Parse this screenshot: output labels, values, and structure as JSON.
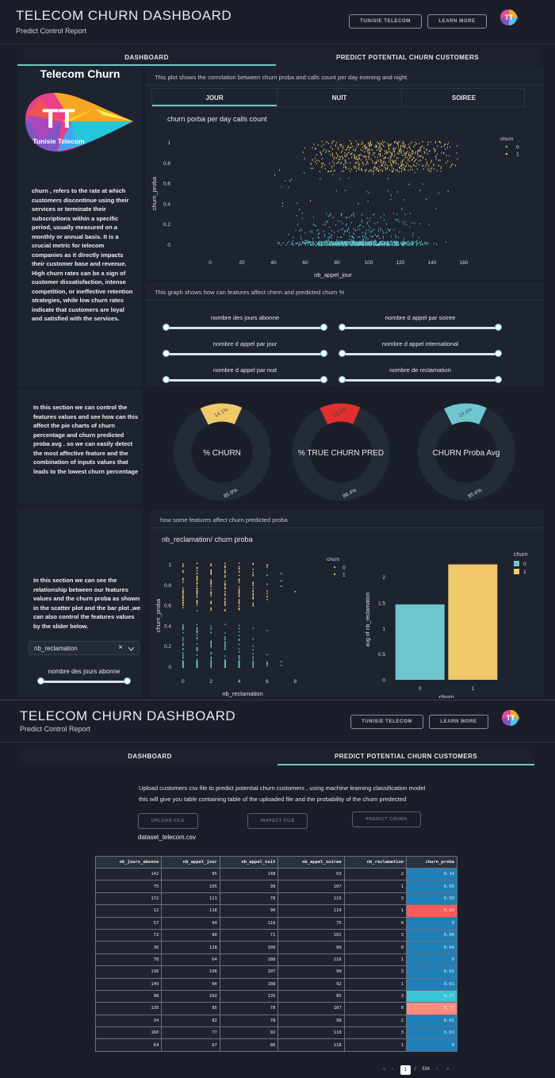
{
  "header": {
    "title": "TELECOM CHURN DASHBOARD",
    "subtitle": "Predict Control Report",
    "btn_tunisie": "TUNISIE TELECOM",
    "btn_learn": "LEARN MORE"
  },
  "tabs": {
    "dashboard": "DASHBOARD",
    "predict": "PREDICT POTENTIAL CHURN CUSTOMERS"
  },
  "sidebar": {
    "brand_title": "Telecom Churn",
    "logo_text": "Tunisie Telecom",
    "logo_letters": "TT",
    "intro": "churn , refers to the rate at which customers discontinue using their services or terminate their subscriptions within a specific period, usually measured on a monthly or annual basis. It is a crucial metric for telecom companies as it directly impacts their customer base and revenue. High churn rates can be a sign of customer dissatisfaction, intense competition, or ineffective retention strategies, while low churn rates indicate that customers are loyal and satisfied with the services.",
    "section2": "In this section we can control the features values and see how can this affect the pie charts of churn percentage and churn predicted proba avg . so we can easily detect the most affective feature and the combination of inputs values that leads to the lowest churn percentage",
    "section3": "In this section we can see the relationship between our features values and the churn proba as shown in the scatter plot and the bar plot ,we can also control the features values by the slider below.",
    "dropdown_value": "nb_reclamation",
    "dropdown_clear": "×",
    "slider_label": "nombre des jours abonne"
  },
  "scatter_panel": {
    "description": "This plot shows the corrolation between churn proba and calls count per day evening and night",
    "subtabs": [
      "JOUR",
      "NUIT",
      "SOIREE"
    ]
  },
  "features_panel": {
    "description": "This graph shows how can features affect chern and predicted churn %",
    "sliders": [
      "nombre des jours abonne",
      "nombre d appel par soiree",
      "nombre d appel par jour",
      "nombre d appel international",
      "nombre d appel par nuit",
      "nombre de reclamation"
    ]
  },
  "donuts": [
    {
      "label": "% CHURN",
      "value": 14.1,
      "rest": 85.9,
      "value_text": "14.1%",
      "rest_text": "85.9%",
      "color": "#f2c96a"
    },
    {
      "label": "% TRUE CHURN PRED",
      "value": 13.6,
      "rest": 86.4,
      "value_text": "13.6%",
      "rest_text": "86.4%",
      "color": "#e0302e"
    },
    {
      "label": "CHURN Proba Avg",
      "value": 14.4,
      "rest": 85.6,
      "value_text": "14.4%",
      "rest_text": "85.6%",
      "color": "#6fc6d0"
    }
  ],
  "bottom_panel": {
    "description": "how some features affect churn predicted proba"
  },
  "predict_page": {
    "desc_line1": "Upload customers csv file to predict potential churn customers , using machine learning classification model",
    "desc_line2": "this will give you table containing table of the uploaded file and the probability of the churn predected",
    "btn_upload": "UPLOAD FILE",
    "btn_inspect": "INSPECT FILE",
    "btn_predict": "PREDICT CHURN",
    "filename": "dataset_telecom.csv",
    "columns": [
      "nb_jours_abonne",
      "nb_appel_jour",
      "nb_appel_nuit",
      "nb_appel_soiree",
      "nb_reclamation",
      "churn_proba"
    ],
    "rows": [
      [
        "142",
        "95",
        "148",
        "63",
        "2",
        "0.14"
      ],
      [
        "75",
        "105",
        "98",
        "107",
        "1",
        "0.05"
      ],
      [
        "172",
        "121",
        "78",
        "115",
        "3",
        "0.03"
      ],
      [
        "12",
        "118",
        "90",
        "119",
        "1",
        "0.93"
      ],
      [
        "57",
        "94",
        "116",
        "75",
        "0",
        "0"
      ],
      [
        "72",
        "80",
        "71",
        "102",
        "3",
        "0.06"
      ],
      [
        "36",
        "128",
        "109",
        "80",
        "0",
        "0.04"
      ],
      [
        "78",
        "64",
        "108",
        "116",
        "1",
        "0"
      ],
      [
        "136",
        "106",
        "107",
        "99",
        "3",
        "0.01"
      ],
      [
        "149",
        "94",
        "108",
        "92",
        "1",
        "0.01"
      ],
      [
        "98",
        "102",
        "135",
        "85",
        "3",
        "0.27"
      ],
      [
        "135",
        "85",
        "78",
        "107",
        "0",
        "0.71"
      ],
      [
        "34",
        "82",
        "78",
        "98",
        "2",
        "0.01"
      ],
      [
        "160",
        "77",
        "92",
        "110",
        "3",
        "0.01"
      ],
      [
        "64",
        "67",
        "86",
        "118",
        "1",
        "0"
      ]
    ],
    "row_colors": [
      "#1f7fb8",
      "#1f7fb8",
      "#1f7fb8",
      "#ff5a5a",
      "#1f7fb8",
      "#1f7fb8",
      "#1f7fb8",
      "#1f7fb8",
      "#1f7fb8",
      "#1f7fb8",
      "#3bc4d4",
      "#ff8a80",
      "#1f7fb8",
      "#1f7fb8",
      "#1f7fb8"
    ],
    "pagination": {
      "first": "«",
      "prev": "‹",
      "current": "1",
      "sep": "/",
      "total": "334",
      "next": "›",
      "last": "»"
    }
  },
  "chart_data": [
    {
      "type": "scatter",
      "title": "churn porba per day calls count",
      "xlabel": "nb_appel_jour",
      "ylabel": "churn_proba",
      "xlim": [
        -15,
        170
      ],
      "ylim": [
        -0.05,
        1.05
      ],
      "xticks": [
        "0",
        "20",
        "40",
        "60",
        "80",
        "100",
        "120",
        "140",
        "160"
      ],
      "yticks": [
        "0",
        "0.2",
        "0.4",
        "0.6",
        "0.8",
        "1"
      ],
      "legend_title": "churn",
      "series": [
        {
          "name": "0",
          "color": "#5cc3c9"
        },
        {
          "name": "1",
          "color": "#f2c96a"
        }
      ],
      "legend_position": "top-right"
    },
    {
      "type": "scatter",
      "title": "nb_reclamation/ churn proba",
      "xlabel": "nb_reclamation",
      "ylabel": "churn_proba",
      "xlim": [
        -0.5,
        9
      ],
      "ylim": [
        -0.05,
        1.05
      ],
      "xticks": [
        "0",
        "2",
        "4",
        "6",
        "8"
      ],
      "yticks": [
        "0",
        "0.2",
        "0.4",
        "0.6",
        "0.8",
        "1"
      ],
      "legend_title": "churn",
      "series": [
        {
          "name": "0",
          "color": "#5cc3c9"
        },
        {
          "name": "1",
          "color": "#f2c96a"
        }
      ],
      "legend_position": "top-right"
    },
    {
      "type": "bar",
      "categories": [
        "0",
        "1"
      ],
      "values": [
        1.47,
        2.25
      ],
      "colors": [
        "#6fc6d0",
        "#f2c96a"
      ],
      "xlabel": "churn",
      "ylabel": "avg of nb_reclamation",
      "ylim": [
        0,
        2.35
      ],
      "yticks": [
        "0",
        "0.5",
        "1",
        "1.5",
        "2"
      ],
      "legend_title": "churn",
      "legend": [
        "0",
        "1"
      ],
      "legend_position": "top-right"
    }
  ]
}
